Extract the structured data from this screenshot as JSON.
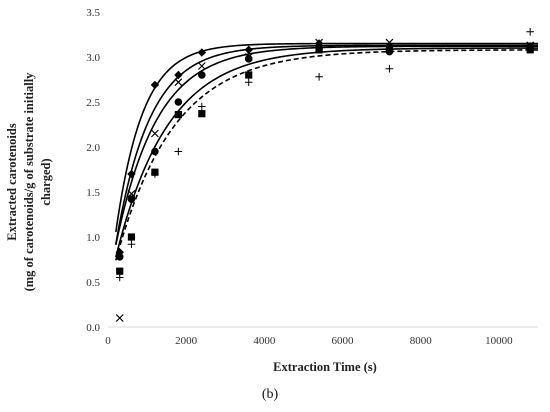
{
  "chart_data": {
    "type": "scatter",
    "title": "",
    "panel_label": "(b)",
    "xlabel": "Extraction Time (s)",
    "ylabel_lines": [
      "Extracted carotenoids",
      "(mg of carotenoids/g of substrate initially",
      "charged)"
    ],
    "xlim": [
      0,
      11000
    ],
    "ylim": [
      0,
      3.5
    ],
    "x_ticks": [
      0,
      2000,
      4000,
      6000,
      8000,
      10000
    ],
    "x_tick_labels": [
      "0",
      "2000",
      "4000",
      "6000",
      "8000",
      "10000"
    ],
    "y_ticks": [
      0,
      0.5,
      1.0,
      1.5,
      2.0,
      2.5,
      3.0,
      3.5
    ],
    "y_tick_labels": [
      "0.0",
      "0.5",
      "1.0",
      "1.5",
      "2.0",
      "2.5",
      "3.0",
      "3.5"
    ],
    "grid": false,
    "series": [
      {
        "marker": "diamond",
        "points": [
          [
            300,
            0.83
          ],
          [
            600,
            1.7
          ],
          [
            1200,
            2.69
          ],
          [
            1800,
            2.8
          ],
          [
            2400,
            3.05
          ],
          [
            3600,
            3.08
          ],
          [
            5400,
            3.15
          ],
          [
            7200,
            3.12
          ],
          [
            10800,
            3.1
          ]
        ],
        "fit": {
          "a": 3.15,
          "b": 0.35,
          "k": 0.00145,
          "dash": false
        }
      },
      {
        "marker": "x",
        "points": [
          [
            300,
            0.1
          ],
          [
            600,
            1.48
          ],
          [
            1200,
            2.15
          ],
          [
            1800,
            2.72
          ],
          [
            2400,
            2.9
          ],
          [
            3600,
            3.0
          ],
          [
            5400,
            3.16
          ],
          [
            7200,
            3.16
          ],
          [
            10800,
            3.13
          ]
        ],
        "fit": {
          "a": 3.13,
          "b": 0.35,
          "k": 0.00115,
          "dash": false
        }
      },
      {
        "marker": "circle",
        "points": [
          [
            300,
            0.78
          ],
          [
            600,
            1.42
          ],
          [
            1200,
            1.95
          ],
          [
            1800,
            2.5
          ],
          [
            2400,
            2.8
          ],
          [
            3600,
            2.98
          ],
          [
            5400,
            3.1
          ],
          [
            7200,
            3.06
          ],
          [
            10800,
            3.12
          ]
        ],
        "fit": {
          "a": 3.12,
          "b": 0.45,
          "k": 0.00095,
          "dash": false
        }
      },
      {
        "marker": "square",
        "points": [
          [
            300,
            0.62
          ],
          [
            600,
            1.0
          ],
          [
            1200,
            1.72
          ],
          [
            1800,
            2.36
          ],
          [
            2400,
            2.37
          ],
          [
            3600,
            2.8
          ],
          [
            5400,
            3.08
          ],
          [
            7200,
            3.1
          ],
          [
            10800,
            3.08
          ]
        ],
        "fit": {
          "a": 3.1,
          "b": 0.4,
          "k": 0.00075,
          "dash": false
        }
      },
      {
        "marker": "plus",
        "points": [
          [
            300,
            0.55
          ],
          [
            600,
            0.92
          ],
          [
            1200,
            1.7
          ],
          [
            1800,
            1.95
          ],
          [
            2400,
            2.45
          ],
          [
            3600,
            2.72
          ],
          [
            5400,
            2.78
          ],
          [
            7200,
            2.87
          ],
          [
            10800,
            3.28
          ]
        ],
        "fit": {
          "a": 3.08,
          "b": 0.4,
          "k": 0.00068,
          "dash": true
        }
      }
    ]
  }
}
